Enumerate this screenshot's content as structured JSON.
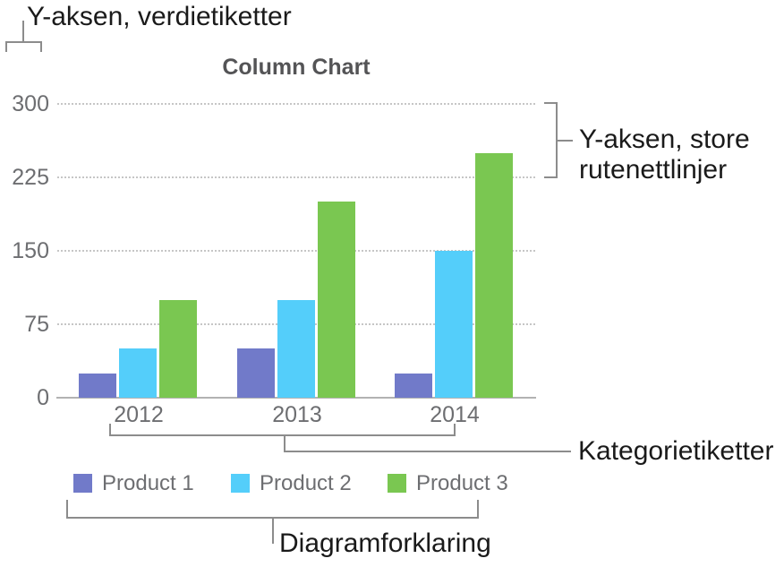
{
  "annotations": {
    "y_value_labels": "Y-aksen, verdietiketter",
    "y_gridlines": "Y-aksen, store rutenettlinjer",
    "category_labels": "Kategorietiketter",
    "legend": "Diagramforklaring"
  },
  "chart_data": {
    "type": "bar",
    "title": "Column Chart",
    "categories": [
      "2012",
      "2013",
      "2014"
    ],
    "series": [
      {
        "name": "Product 1",
        "color": "#717AC9",
        "values": [
          25,
          50,
          25
        ]
      },
      {
        "name": "Product 2",
        "color": "#54CEFA",
        "values": [
          50,
          100,
          150
        ]
      },
      {
        "name": "Product 3",
        "color": "#7AC751",
        "values": [
          100,
          200,
          250
        ]
      }
    ],
    "y_ticks": [
      0,
      75,
      150,
      225,
      300
    ],
    "ylim": [
      0,
      300
    ],
    "xlabel": "",
    "ylabel": "",
    "grid": "horizontal dotted major gridlines",
    "legend_position": "bottom"
  },
  "colors": {
    "callout_line": "#8c8c8c",
    "axis_text": "#6d6e71",
    "title_text": "#545456",
    "annotation_text": "#1a1a1a",
    "gridline": "#c6c6c6",
    "baseline": "#b2b2b2"
  }
}
